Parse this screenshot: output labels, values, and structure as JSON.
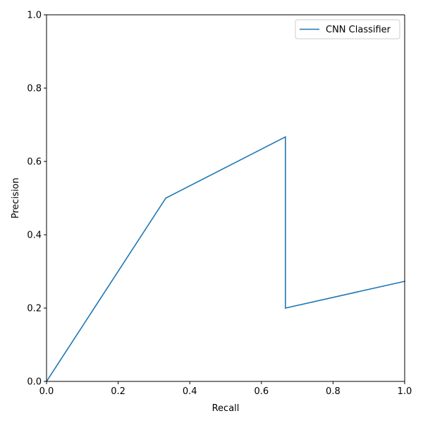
{
  "chart_data": {
    "type": "line",
    "title": "",
    "xlabel": "Recall",
    "ylabel": "Precision",
    "xlim": [
      0.0,
      1.0
    ],
    "ylim": [
      0.0,
      1.0
    ],
    "xticks": [
      "0.0",
      "0.2",
      "0.4",
      "0.6",
      "0.8",
      "1.0"
    ],
    "yticks": [
      "0.0",
      "0.2",
      "0.4",
      "0.6",
      "0.8",
      "1.0"
    ],
    "grid": false,
    "legend_position": "top-right",
    "series": [
      {
        "name": "CNN Classifier",
        "color": "#1f77b4",
        "x": [
          0.0,
          0.333,
          0.667,
          0.667,
          1.0
        ],
        "y": [
          0.0,
          0.5,
          0.667,
          0.2,
          0.273
        ]
      }
    ]
  }
}
